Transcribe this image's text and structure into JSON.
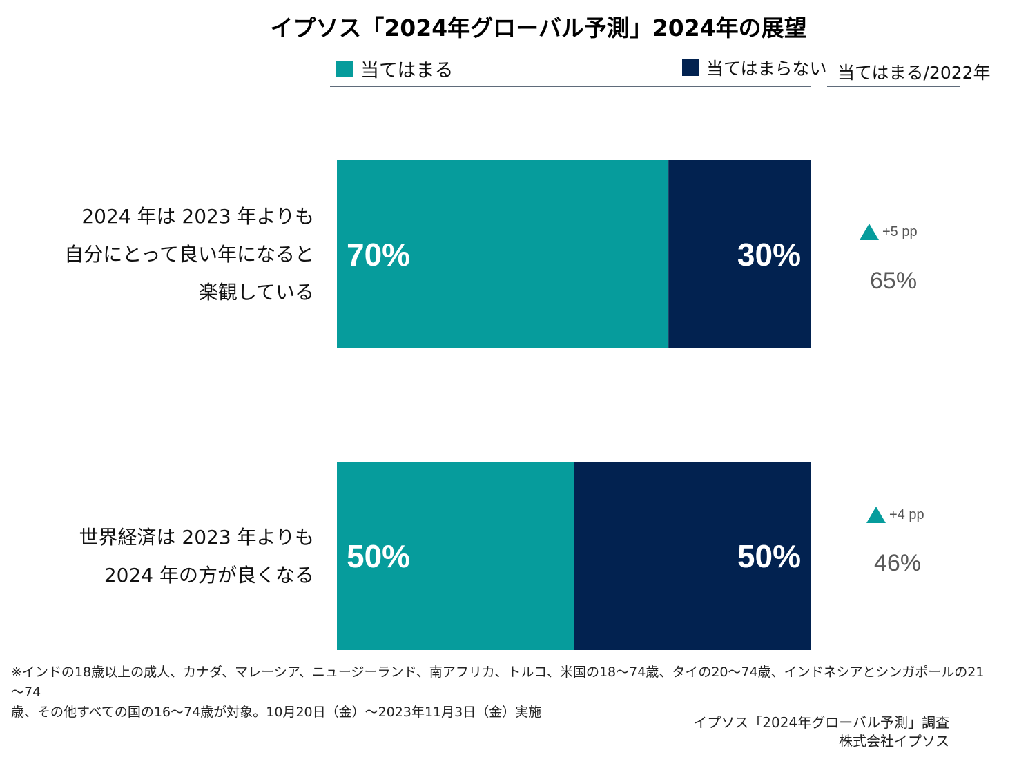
{
  "chart_data": {
    "type": "bar",
    "orientation": "horizontal",
    "stacked": true,
    "title": "イプソス「2024年グローバル予測」2024年の展望",
    "categories": [
      [
        "2024 年は 2023 年よりも",
        "自分にとって良い年になると",
        "楽観している"
      ],
      [
        "世界経済は 2023 年よりも",
        "2024 年の方が良くなる"
      ]
    ],
    "series": [
      {
        "name": "当てはまる",
        "color": "#069c9c",
        "values": [
          70,
          50
        ],
        "labels": [
          "70%",
          "50%"
        ]
      },
      {
        "name": "当てはまらない",
        "color": "#022250",
        "values": [
          30,
          50
        ],
        "labels": [
          "30%",
          "50%"
        ]
      }
    ],
    "comparison": {
      "header": "当てはまる/2022年",
      "values": [
        65,
        46
      ],
      "labels": [
        "65%",
        "46%"
      ],
      "changes": [
        "+5 pp",
        "+4 pp"
      ],
      "arrow_color": "#069c9c"
    },
    "xlim": [
      0,
      100
    ],
    "unit": "%"
  },
  "footnote": {
    "line1": "※インドの18歳以上の成人、カナダ、マレーシア、ニュージーランド、南アフリカ、トルコ、米国の18～74歳、タイの20～74歳、インドネシアとシンガポールの21～74",
    "line2": "歳、その他すべての国の16～74歳が対象。10月20日（金）～2023年11月3日（金）実施"
  },
  "source": {
    "line1": "イプソス「2024年グローバル予測」調査",
    "line2": "株式会社イプソス"
  }
}
